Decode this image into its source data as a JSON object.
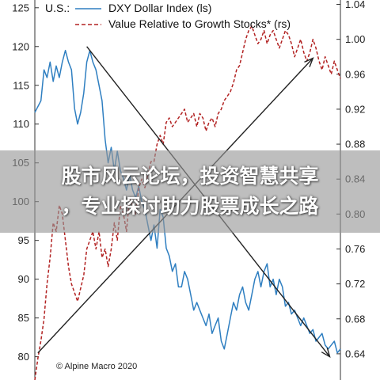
{
  "chart_data": {
    "type": "line",
    "legend": {
      "left_axis_label": "U.S.:",
      "placement": "top",
      "entries": [
        {
          "name": "DXY Dollar Index (ls)",
          "color": "#2f7fc1",
          "style": "solid"
        },
        {
          "name": "Value Relative to Growth Stocks* (rs)",
          "color": "#b22222",
          "style": "dashed"
        }
      ]
    },
    "y_left": {
      "ticks": [
        "125",
        "120",
        "115",
        "110",
        "105",
        "100",
        "95",
        "90",
        "85",
        "80"
      ],
      "min": 77,
      "max": 126
    },
    "y_right": {
      "ticks": [
        "1.04",
        "1.00",
        "0.96",
        "0.92",
        "0.88",
        "0.84",
        "0.80",
        "0.76",
        "0.72",
        "0.68",
        "0.64"
      ],
      "min": 0.61,
      "max": 1.045
    },
    "x_range": [
      0,
      100
    ],
    "series": [
      {
        "name": "DXY Dollar Index (ls)",
        "axis": "left",
        "color": "#2f7fc1",
        "x": [
          0,
          2,
          3,
          4,
          5,
          6,
          7,
          8,
          9,
          10,
          11,
          12,
          13,
          14,
          15,
          16,
          17,
          18,
          19,
          20,
          21,
          22,
          23,
          24,
          25,
          26,
          27,
          28,
          29,
          30,
          31,
          32,
          33,
          34,
          35,
          36,
          37,
          38,
          39,
          40,
          41,
          42,
          43,
          44,
          45,
          46,
          47,
          48,
          49,
          50,
          51,
          52,
          53,
          54,
          55,
          56,
          57,
          58,
          59,
          60,
          61,
          62,
          63,
          64,
          65,
          66,
          67,
          68,
          69,
          70,
          71,
          72,
          73,
          74,
          75,
          76,
          77,
          78,
          79,
          80,
          81,
          82,
          83,
          84,
          85,
          86,
          87,
          88,
          89,
          90,
          91,
          92,
          93,
          94,
          95,
          96,
          97,
          98,
          99,
          100
        ],
        "y": [
          111.5,
          113,
          117,
          116,
          118,
          115.5,
          117.5,
          116,
          118,
          119.5,
          118,
          117,
          112,
          110,
          111.5,
          114,
          118,
          119.5,
          118,
          117,
          115,
          113,
          108,
          105,
          107,
          104,
          106.5,
          104,
          103,
          101.5,
          103.5,
          101.5,
          100.5,
          102,
          100,
          99,
          97,
          95,
          97,
          94,
          99,
          98,
          94,
          93,
          91,
          92,
          89,
          89,
          91,
          90,
          88,
          86,
          87,
          86,
          85,
          84,
          85.5,
          83,
          84,
          85,
          82,
          81,
          83,
          85,
          87,
          86,
          88,
          89,
          87,
          86,
          88,
          90,
          91,
          89,
          91,
          92,
          89,
          90,
          88,
          90,
          89,
          86.5,
          87,
          85.5,
          86,
          85,
          84,
          85,
          84,
          83,
          83.5,
          82,
          82.5,
          83,
          81.5,
          81,
          81.5,
          82,
          80.5,
          81
        ]
      },
      {
        "name": "Value Relative to Growth Stocks* (rs)",
        "axis": "right",
        "color": "#b22222",
        "x": [
          0,
          1,
          2,
          3,
          4,
          5,
          6,
          7,
          8,
          9,
          10,
          11,
          12,
          13,
          14,
          15,
          16,
          17,
          18,
          19,
          20,
          21,
          22,
          23,
          24,
          25,
          26,
          27,
          28,
          29,
          30,
          31,
          32,
          33,
          34,
          35,
          36,
          37,
          38,
          39,
          40,
          41,
          42,
          43,
          44,
          45,
          46,
          47,
          48,
          49,
          50,
          51,
          52,
          53,
          54,
          55,
          56,
          57,
          58,
          59,
          60,
          61,
          62,
          63,
          64,
          65,
          66,
          67,
          68,
          69,
          70,
          71,
          72,
          73,
          74,
          75,
          76,
          77,
          78,
          79,
          80,
          81,
          82,
          83,
          84,
          85,
          86,
          87,
          88,
          89,
          90,
          91,
          92,
          93,
          94,
          95,
          96,
          97,
          98,
          99,
          100
        ],
        "y": [
          0.61,
          0.635,
          0.655,
          0.68,
          0.72,
          0.75,
          0.79,
          0.78,
          0.81,
          0.8,
          0.77,
          0.74,
          0.72,
          0.71,
          0.7,
          0.715,
          0.73,
          0.76,
          0.77,
          0.78,
          0.76,
          0.78,
          0.75,
          0.76,
          0.74,
          0.76,
          0.79,
          0.77,
          0.81,
          0.8,
          0.78,
          0.82,
          0.81,
          0.8,
          0.83,
          0.84,
          0.83,
          0.845,
          0.86,
          0.86,
          0.88,
          0.89,
          0.88,
          0.905,
          0.91,
          0.9,
          0.905,
          0.91,
          0.915,
          0.92,
          0.905,
          0.91,
          0.915,
          0.9,
          0.915,
          0.91,
          0.895,
          0.905,
          0.91,
          0.9,
          0.915,
          0.92,
          0.93,
          0.935,
          0.94,
          0.95,
          0.965,
          0.97,
          0.985,
          1.0,
          1.01,
          1.015,
          1.005,
          0.995,
          1.0,
          1.01,
          0.995,
          1.005,
          1.01,
          1.0,
          0.99,
          1.0,
          1.01,
          1.005,
          0.995,
          0.98,
          0.99,
          1.0,
          0.985,
          0.975,
          0.985,
          1.0,
          0.99,
          0.975,
          0.965,
          0.98,
          0.97,
          0.96,
          0.975,
          0.965,
          0.955
        ]
      }
    ],
    "trend_arrows": [
      {
        "start": {
          "x": 1,
          "y_left": 80.5
        },
        "end": {
          "x": 91,
          "y_left": 118.5
        }
      },
      {
        "start": {
          "x": 17,
          "y_left": 120
        },
        "end": {
          "x": 96.5,
          "y_left": 80
        }
      }
    ],
    "credit": "© Alpine Macro 2020",
    "overlay_text": [
      "股市风云论坛，投资智慧共享",
      "，专业探讨助力股票成长之路"
    ]
  }
}
